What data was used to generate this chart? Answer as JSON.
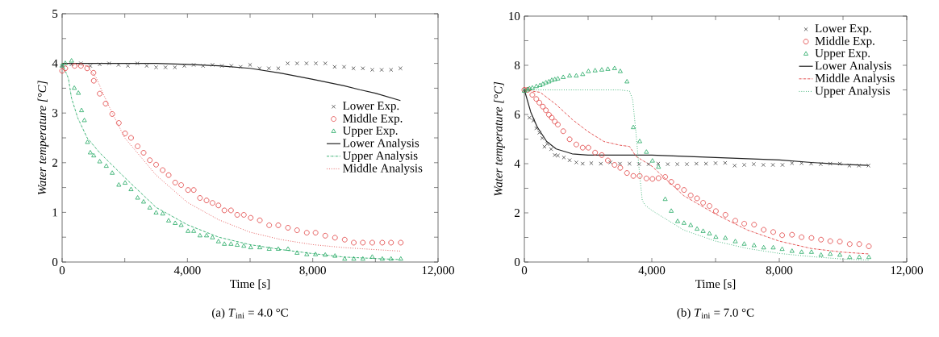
{
  "chart_data": [
    {
      "type": "line",
      "title": "(a) *T*$_{ini}$ = 4.0 °C",
      "xlabel": "Time [s]",
      "ylabel": "Water temperature [°C]",
      "xlim": [
        0,
        12000
      ],
      "ylim": [
        0,
        5
      ],
      "xticks": [
        0,
        {
          "value": 2000,
          "label": null
        },
        {
          "value": 4000,
          "label": "4,000"
        },
        {
          "value": 6000,
          "label": null
        },
        {
          "value": 8000,
          "label": "8,000"
        },
        {
          "value": 10000,
          "label": null
        },
        {
          "value": 12000,
          "label": "12,000"
        }
      ],
      "yticks": [
        0,
        {
          "value": 0.5,
          "label": null
        },
        1,
        {
          "value": 1.5,
          "label": null
        },
        2,
        {
          "value": 2.5,
          "label": null
        },
        3,
        {
          "value": 3.5,
          "label": null
        },
        4,
        {
          "value": 4.5,
          "label": null
        },
        5
      ],
      "grid": false,
      "legend": "right",
      "series": [
        {
          "name": "Lower Exp.",
          "type": "scatter",
          "marker": "cross",
          "color": "#404040",
          "x": [
            0,
            300,
            600,
            900,
            1200,
            1500,
            1800,
            2100,
            2400,
            2700,
            3000,
            3300,
            3600,
            3900,
            4200,
            4500,
            4800,
            5100,
            5400,
            5700,
            6000,
            6300,
            6600,
            6900,
            7200,
            7500,
            7800,
            8100,
            8400,
            8700,
            9000,
            9300,
            9600,
            9900,
            10200,
            10500,
            10800
          ],
          "values": [
            3.95,
            3.98,
            4.0,
            3.95,
            3.98,
            4.0,
            3.97,
            3.95,
            4.0,
            3.95,
            3.92,
            3.92,
            3.92,
            3.95,
            3.97,
            3.95,
            3.97,
            3.95,
            3.95,
            3.93,
            3.97,
            3.9,
            3.9,
            3.9,
            4.0,
            4.0,
            4.0,
            4.0,
            4.0,
            3.93,
            3.93,
            3.9,
            3.9,
            3.87,
            3.87,
            3.87,
            3.9
          ]
        },
        {
          "name": "Middle Exp.",
          "type": "scatter",
          "marker": "circle",
          "color": "#e03a3a",
          "x": [
            0,
            100,
            400,
            600,
            800,
            1000,
            1010,
            1200,
            1390,
            1600,
            1810,
            2010,
            2200,
            2410,
            2600,
            2800,
            3000,
            3210,
            3400,
            3610,
            3800,
            4020,
            4200,
            4400,
            4610,
            4800,
            4990,
            5180,
            5390,
            5590,
            5800,
            6020,
            6310,
            6610,
            6900,
            7210,
            7500,
            7810,
            8090,
            8400,
            8710,
            9020,
            9310,
            9600,
            9900,
            10220,
            10500,
            10810
          ],
          "values": [
            3.85,
            3.9,
            3.95,
            3.95,
            3.9,
            3.81,
            3.65,
            3.39,
            3.19,
            2.98,
            2.8,
            2.59,
            2.5,
            2.33,
            2.2,
            2.05,
            1.96,
            1.85,
            1.75,
            1.6,
            1.55,
            1.45,
            1.45,
            1.29,
            1.24,
            1.19,
            1.14,
            1.04,
            1.04,
            0.95,
            0.95,
            0.89,
            0.84,
            0.74,
            0.74,
            0.69,
            0.64,
            0.59,
            0.59,
            0.53,
            0.49,
            0.45,
            0.39,
            0.39,
            0.39,
            0.39,
            0.39,
            0.39
          ]
        },
        {
          "name": "Upper Exp.",
          "type": "scatter",
          "marker": "triangle",
          "color": "#22a862",
          "x": [
            0,
            100,
            300,
            390,
            520,
            620,
            710,
            810,
            900,
            1010,
            1200,
            1410,
            1600,
            1810,
            2010,
            2200,
            2410,
            2600,
            2800,
            3000,
            3210,
            3400,
            3610,
            3800,
            4020,
            4200,
            4400,
            4610,
            4800,
            4990,
            5180,
            5390,
            5590,
            5800,
            6020,
            6310,
            6610,
            6900,
            7210,
            7500,
            7810,
            8090,
            8400,
            8710,
            9020,
            9310,
            9600,
            9900,
            10220,
            10500,
            10810
          ],
          "values": [
            3.95,
            4.0,
            4.05,
            3.5,
            3.4,
            3.05,
            2.85,
            2.41,
            2.2,
            2.14,
            2.02,
            1.93,
            1.79,
            1.55,
            1.59,
            1.46,
            1.29,
            1.21,
            1.09,
            0.99,
            0.97,
            0.83,
            0.78,
            0.74,
            0.62,
            0.62,
            0.53,
            0.53,
            0.49,
            0.41,
            0.36,
            0.36,
            0.34,
            0.32,
            0.29,
            0.29,
            0.26,
            0.26,
            0.26,
            0.18,
            0.15,
            0.15,
            0.14,
            0.12,
            0.06,
            0.06,
            0.06,
            0.1,
            0.06,
            0.06,
            0.06
          ]
        },
        {
          "name": "Lower Analysis",
          "marker": "none",
          "line_style": "solid",
          "color": "#202020",
          "x": [
            0,
            1000,
            2000,
            3000,
            4000,
            5000,
            6000,
            7000,
            8000,
            9000,
            9500,
            10000,
            10800
          ],
          "values": [
            4.0,
            4.0,
            4.0,
            4.0,
            3.98,
            3.95,
            3.9,
            3.8,
            3.68,
            3.55,
            3.47,
            3.4,
            3.25
          ]
        },
        {
          "name": "Upper Analysis",
          "marker": "none",
          "line_style": "dashdot",
          "color": "#22a862",
          "x": [
            0,
            200,
            300,
            500,
            800,
            1200,
            2000,
            3000,
            4000,
            5000,
            6000,
            7000,
            8000,
            9000,
            10000,
            10800
          ],
          "values": [
            4.0,
            3.7,
            3.3,
            2.9,
            2.5,
            2.2,
            1.7,
            1.1,
            0.75,
            0.5,
            0.35,
            0.25,
            0.17,
            0.1,
            0.07,
            0.05
          ]
        },
        {
          "name": "Middle Analysis",
          "marker": "none",
          "line_style": "dotted",
          "color": "#e03a3a",
          "x": [
            0,
            800,
            1100,
            1300,
            1600,
            2000,
            3000,
            4000,
            5000,
            6000,
            7000,
            8000,
            9000,
            10000,
            10800
          ],
          "values": [
            4.0,
            3.95,
            3.7,
            3.4,
            3.0,
            2.5,
            1.75,
            1.2,
            0.85,
            0.6,
            0.45,
            0.35,
            0.29,
            0.25,
            0.22
          ]
        }
      ]
    },
    {
      "type": "line",
      "title": "(b) *T*$_{ini}$ = 7.0 °C",
      "xlabel": "Time [s]",
      "ylabel": "Water temperature [°C]",
      "xlim": [
        0,
        12000
      ],
      "ylim": [
        0,
        10
      ],
      "xticks": [
        0,
        {
          "value": 2000,
          "label": null
        },
        {
          "value": 4000,
          "label": "4,000"
        },
        {
          "value": 6000,
          "label": null
        },
        {
          "value": 8000,
          "label": "8,000"
        },
        {
          "value": 10000,
          "label": null
        },
        {
          "value": 12000,
          "label": "12,000"
        }
      ],
      "yticks": [
        0,
        {
          "value": 1,
          "label": null
        },
        2,
        {
          "value": 3,
          "label": null
        },
        4,
        {
          "value": 5,
          "label": null
        },
        6,
        {
          "value": 7,
          "label": null
        },
        8,
        {
          "value": 9,
          "label": null
        },
        10
      ],
      "grid": false,
      "legend": "top right",
      "series": [
        {
          "name": "Lower Exp.",
          "type": "scatter",
          "marker": "cross",
          "color": "#404040",
          "x": [
            0,
            160,
            280,
            375,
            470,
            560,
            630,
            720,
            840,
            955,
            1050,
            1240,
            1420,
            1630,
            1830,
            2100,
            2400,
            2700,
            3000,
            3300,
            3600,
            3900,
            4200,
            4500,
            4800,
            5100,
            5400,
            5700,
            6000,
            6300,
            6600,
            6900,
            7200,
            7500,
            7800,
            8100,
            8400,
            8700,
            9000,
            9300,
            9600,
            9900,
            10200,
            10500,
            10800
          ],
          "values": [
            7.0,
            5.87,
            5.75,
            5.44,
            5.26,
            5.04,
            4.69,
            4.8,
            4.59,
            4.35,
            4.33,
            4.25,
            4.14,
            4.05,
            4.0,
            4.02,
            4.0,
            4.05,
            4.0,
            4.0,
            3.98,
            3.98,
            4.0,
            3.98,
            3.98,
            3.98,
            4.0,
            4.0,
            4.02,
            4.03,
            3.92,
            3.95,
            3.98,
            3.95,
            3.95,
            3.95,
            4.02,
            4.02,
            4.0,
            3.98,
            4.0,
            4.0,
            3.92,
            3.92,
            3.92
          ]
        },
        {
          "name": "Middle Exp.",
          "type": "scatter",
          "marker": "circle",
          "color": "#e03a3a",
          "x": [
            0,
            100,
            250,
            375,
            470,
            580,
            675,
            770,
            860,
            955,
            1050,
            1220,
            1420,
            1630,
            1830,
            2010,
            2220,
            2430,
            2620,
            2830,
            3010,
            3220,
            3420,
            3620,
            3830,
            4020,
            4210,
            4420,
            4610,
            4810,
            5010,
            5220,
            5420,
            5610,
            5810,
            6010,
            6310,
            6620,
            6900,
            7210,
            7510,
            7810,
            8090,
            8400,
            8700,
            9010,
            9310,
            9600,
            9900,
            10210,
            10510,
            10810
          ],
          "values": [
            7.0,
            7.0,
            6.8,
            6.63,
            6.48,
            6.32,
            6.17,
            5.99,
            5.87,
            5.71,
            5.59,
            5.32,
            4.99,
            4.78,
            4.65,
            4.65,
            4.45,
            4.35,
            4.13,
            3.95,
            3.83,
            3.62,
            3.5,
            3.5,
            3.4,
            3.38,
            3.41,
            3.46,
            3.26,
            3.07,
            2.93,
            2.71,
            2.59,
            2.41,
            2.28,
            2.07,
            1.92,
            1.68,
            1.56,
            1.52,
            1.31,
            1.22,
            1.09,
            1.11,
            1.01,
            0.98,
            0.91,
            0.85,
            0.83,
            0.73,
            0.73,
            0.64
          ]
        },
        {
          "name": "Upper Exp.",
          "type": "scatter",
          "marker": "triangle",
          "color": "#22a862",
          "x": [
            0,
            100,
            160,
            250,
            375,
            490,
            580,
            675,
            770,
            860,
            955,
            1050,
            1220,
            1420,
            1630,
            1830,
            2010,
            2220,
            2430,
            2620,
            2830,
            3010,
            3220,
            3420,
            3620,
            3830,
            4020,
            4210,
            4420,
            4610,
            4810,
            5010,
            5220,
            5420,
            5610,
            5810,
            6010,
            6310,
            6620,
            6900,
            7210,
            7510,
            7810,
            8090,
            8400,
            8700,
            9010,
            9310,
            9600,
            9900,
            10210,
            10510,
            10810
          ],
          "values": [
            6.95,
            7.0,
            7.05,
            7.08,
            7.14,
            7.18,
            7.23,
            7.29,
            7.33,
            7.39,
            7.42,
            7.45,
            7.51,
            7.57,
            7.57,
            7.63,
            7.75,
            7.78,
            7.81,
            7.84,
            7.87,
            7.75,
            7.33,
            5.47,
            4.9,
            4.47,
            4.11,
            3.86,
            2.55,
            2.07,
            1.65,
            1.58,
            1.49,
            1.34,
            1.25,
            1.15,
            1.01,
            0.97,
            0.83,
            0.73,
            0.67,
            0.58,
            0.58,
            0.52,
            0.44,
            0.4,
            0.4,
            0.28,
            0.32,
            0.28,
            0.19,
            0.19,
            0.19
          ]
        },
        {
          "name": "Lower Analysis",
          "marker": "none",
          "line_style": "solid",
          "color": "#202020",
          "x": [
            0,
            200,
            400,
            700,
            1000,
            1500,
            2000,
            3000,
            4000,
            5000,
            6000,
            7000,
            8000,
            9000,
            10000,
            10800
          ],
          "values": [
            7.0,
            6.1,
            5.5,
            4.9,
            4.6,
            4.4,
            4.35,
            4.35,
            4.35,
            4.3,
            4.25,
            4.2,
            4.15,
            4.05,
            3.97,
            3.93
          ]
        },
        {
          "name": "Middle Analysis",
          "marker": "none",
          "line_style": "dashdot",
          "color": "#e03a3a",
          "x": [
            0,
            500,
            1000,
            1500,
            2000,
            2500,
            3000,
            3300,
            3500,
            4000,
            4500,
            5000,
            6000,
            7000,
            8000,
            9000,
            10000,
            10800
          ],
          "values": [
            7.0,
            6.9,
            6.4,
            5.8,
            5.3,
            4.9,
            4.75,
            4.7,
            4.3,
            3.9,
            3.3,
            2.7,
            1.95,
            1.3,
            0.85,
            0.55,
            0.4,
            0.33
          ]
        },
        {
          "name": "Upper Analysis",
          "marker": "none",
          "line_style": "dotted",
          "color": "#22a862",
          "x": [
            0,
            1000,
            2000,
            3000,
            3300,
            3400,
            3500,
            3600,
            3700,
            3800,
            4000,
            4500,
            5000,
            6000,
            7000,
            8000,
            9000,
            10000,
            10800
          ],
          "values": [
            7.0,
            7.0,
            7.0,
            7.0,
            6.95,
            6.6,
            5.3,
            3.8,
            2.5,
            2.3,
            2.1,
            1.7,
            1.3,
            0.85,
            0.55,
            0.35,
            0.22,
            0.12,
            0.08
          ]
        }
      ]
    }
  ]
}
